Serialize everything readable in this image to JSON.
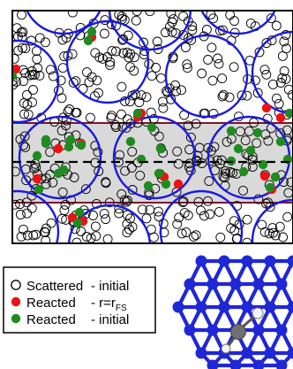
{
  "colors": {
    "frame": "#000000",
    "blue_circle": "#1a1adf",
    "band_fill": "#d9d9d9",
    "band_border": "#7a1430",
    "scattered": "#000000",
    "reacted_rfs": "#ee1111",
    "reacted_initial": "#1e8c1e",
    "lattice": "#1f27d6",
    "adsorbate": "#707070"
  },
  "legend": {
    "items": [
      {
        "marker": "open-circle",
        "label_a": "Scattered",
        "label_b": "- initial",
        "color": "#000000"
      },
      {
        "marker": "red-dot",
        "label_a": "Reacted",
        "label_b": "- r=r",
        "subscript": "FS",
        "color": "#ee1111"
      },
      {
        "marker": "green-dot",
        "label_a": "Reacted",
        "label_b": "- initial",
        "color": "#1e8c1e"
      }
    ]
  }
}
